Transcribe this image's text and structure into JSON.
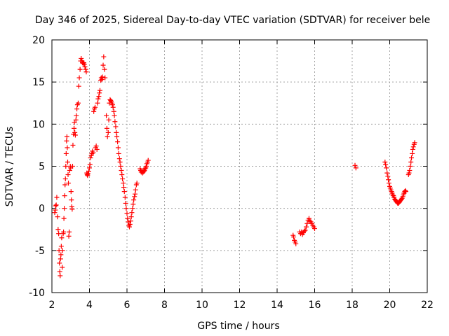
{
  "chart_data": {
    "type": "scatter",
    "title": "Day 346 of 2025, Sidereal Day-to-day VTEC variation (SDTVAR) for receiver bele",
    "xlabel": "GPS time / hours",
    "ylabel": "SDTVAR / TECUs",
    "xlim": [
      2,
      22
    ],
    "ylim": [
      -10,
      20
    ],
    "xticks": [
      2,
      4,
      6,
      8,
      10,
      12,
      14,
      16,
      18,
      20,
      22
    ],
    "yticks": [
      -10,
      -5,
      0,
      5,
      10,
      15,
      20
    ],
    "grid": true,
    "marker": "+",
    "color": "#ff0000",
    "series": [
      {
        "name": "SDTVAR",
        "points": [
          [
            2.15,
            -0.5
          ],
          [
            2.18,
            -0.2
          ],
          [
            2.2,
            0.3
          ],
          [
            2.23,
            0.4
          ],
          [
            2.26,
            1.3
          ],
          [
            2.3,
            -1.0
          ],
          [
            2.33,
            -2.5
          ],
          [
            2.36,
            -3.0
          ],
          [
            2.38,
            -5.0
          ],
          [
            2.4,
            -6.5
          ],
          [
            2.42,
            -7.5
          ],
          [
            2.44,
            -8.0
          ],
          [
            2.46,
            -6.0
          ],
          [
            2.48,
            -5.5
          ],
          [
            2.5,
            -4.5
          ],
          [
            2.52,
            -3.5
          ],
          [
            2.55,
            -7.0
          ],
          [
            2.57,
            -5.0
          ],
          [
            2.6,
            -3.0
          ],
          [
            2.62,
            -2.8
          ],
          [
            2.64,
            -1.2
          ],
          [
            2.66,
            0.0
          ],
          [
            2.68,
            1.5
          ],
          [
            2.7,
            2.8
          ],
          [
            2.72,
            3.5
          ],
          [
            2.74,
            5.0
          ],
          [
            2.76,
            6.5
          ],
          [
            2.78,
            8.0
          ],
          [
            2.8,
            8.5
          ],
          [
            2.82,
            7.2
          ],
          [
            2.84,
            5.5
          ],
          [
            2.86,
            4.0
          ],
          [
            2.88,
            3.0
          ],
          [
            2.9,
            -3.3
          ],
          [
            2.92,
            -2.8
          ],
          [
            2.95,
            4.5
          ],
          [
            2.98,
            5.0
          ],
          [
            3.0,
            4.8
          ],
          [
            3.02,
            2.0
          ],
          [
            3.04,
            1.0
          ],
          [
            3.06,
            0.2
          ],
          [
            3.08,
            -0.1
          ],
          [
            3.1,
            5.0
          ],
          [
            3.12,
            7.5
          ],
          [
            3.15,
            8.8
          ],
          [
            3.18,
            9.5
          ],
          [
            3.2,
            10.2
          ],
          [
            3.22,
            9.0
          ],
          [
            3.25,
            8.7
          ],
          [
            3.28,
            10.5
          ],
          [
            3.3,
            11.0
          ],
          [
            3.33,
            11.8
          ],
          [
            3.36,
            12.3
          ],
          [
            3.4,
            12.5
          ],
          [
            3.43,
            14.5
          ],
          [
            3.46,
            15.5
          ],
          [
            3.5,
            16.5
          ],
          [
            3.53,
            17.5
          ],
          [
            3.56,
            17.8
          ],
          [
            3.6,
            17.5
          ],
          [
            3.63,
            17.3
          ],
          [
            3.66,
            17.2
          ],
          [
            3.7,
            17.3
          ],
          [
            3.73,
            17.1
          ],
          [
            3.76,
            16.8
          ],
          [
            3.8,
            16.5
          ],
          [
            3.83,
            16.2
          ],
          [
            3.86,
            4.2
          ],
          [
            3.88,
            4.0
          ],
          [
            3.9,
            3.9
          ],
          [
            3.93,
            4.1
          ],
          [
            3.96,
            4.4
          ],
          [
            4.0,
            4.8
          ],
          [
            4.03,
            5.2
          ],
          [
            4.06,
            6.0
          ],
          [
            4.1,
            6.3
          ],
          [
            4.13,
            6.5
          ],
          [
            4.16,
            6.8
          ],
          [
            4.2,
            6.6
          ],
          [
            4.23,
            11.5
          ],
          [
            4.26,
            11.8
          ],
          [
            4.3,
            12.0
          ],
          [
            4.33,
            7.2
          ],
          [
            4.36,
            7.4
          ],
          [
            4.4,
            7.0
          ],
          [
            4.43,
            12.5
          ],
          [
            4.46,
            13.0
          ],
          [
            4.5,
            13.3
          ],
          [
            4.53,
            13.7
          ],
          [
            4.56,
            14.0
          ],
          [
            4.6,
            15.2
          ],
          [
            4.63,
            15.5
          ],
          [
            4.66,
            15.3
          ],
          [
            4.7,
            15.6
          ],
          [
            4.73,
            17.0
          ],
          [
            4.76,
            18.0
          ],
          [
            4.8,
            16.5
          ],
          [
            4.83,
            15.5
          ],
          [
            4.9,
            11.0
          ],
          [
            4.93,
            9.5
          ],
          [
            4.96,
            8.5
          ],
          [
            5.0,
            9.0
          ],
          [
            5.03,
            10.5
          ],
          [
            5.06,
            12.5
          ],
          [
            5.1,
            12.9
          ],
          [
            5.13,
            12.8
          ],
          [
            5.16,
            12.7
          ],
          [
            5.2,
            12.5
          ],
          [
            5.23,
            12.3
          ],
          [
            5.26,
            12.0
          ],
          [
            5.3,
            11.5
          ],
          [
            5.33,
            11.0
          ],
          [
            5.36,
            10.3
          ],
          [
            5.4,
            9.7
          ],
          [
            5.43,
            9.0
          ],
          [
            5.46,
            8.5
          ],
          [
            5.5,
            7.9
          ],
          [
            5.53,
            7.2
          ],
          [
            5.56,
            6.5
          ],
          [
            5.6,
            5.9
          ],
          [
            5.63,
            5.5
          ],
          [
            5.66,
            5.0
          ],
          [
            5.7,
            4.5
          ],
          [
            5.73,
            4.0
          ],
          [
            5.76,
            3.5
          ],
          [
            5.8,
            3.0
          ],
          [
            5.83,
            2.5
          ],
          [
            5.86,
            2.0
          ],
          [
            5.9,
            1.3
          ],
          [
            5.93,
            0.6
          ],
          [
            5.96,
            0.0
          ],
          [
            6.0,
            -0.6
          ],
          [
            6.03,
            -1.2
          ],
          [
            6.06,
            -1.6
          ],
          [
            6.1,
            -2.0
          ],
          [
            6.13,
            -2.2
          ],
          [
            6.16,
            -1.9
          ],
          [
            6.2,
            -1.5
          ],
          [
            6.23,
            -1.0
          ],
          [
            6.26,
            -0.5
          ],
          [
            6.3,
            0.0
          ],
          [
            6.33,
            0.5
          ],
          [
            6.36,
            1.0
          ],
          [
            6.4,
            1.4
          ],
          [
            6.43,
            1.7
          ],
          [
            6.46,
            2.2
          ],
          [
            6.5,
            2.8
          ],
          [
            6.53,
            3.0
          ],
          [
            6.7,
            4.7
          ],
          [
            6.73,
            4.5
          ],
          [
            6.76,
            4.3
          ],
          [
            6.8,
            4.4
          ],
          [
            6.83,
            4.2
          ],
          [
            6.86,
            4.3
          ],
          [
            6.9,
            4.4
          ],
          [
            6.93,
            4.5
          ],
          [
            6.96,
            4.7
          ],
          [
            7.0,
            4.8
          ],
          [
            7.03,
            5.0
          ],
          [
            7.06,
            5.3
          ],
          [
            7.1,
            5.5
          ],
          [
            7.13,
            5.7
          ],
          [
            14.85,
            -3.2
          ],
          [
            14.88,
            -3.4
          ],
          [
            14.92,
            -3.8
          ],
          [
            14.96,
            -4.0
          ],
          [
            15.0,
            -4.2
          ],
          [
            15.2,
            -2.8
          ],
          [
            15.25,
            -3.0
          ],
          [
            15.3,
            -2.8
          ],
          [
            15.35,
            -3.1
          ],
          [
            15.4,
            -2.9
          ],
          [
            15.45,
            -2.7
          ],
          [
            15.5,
            -2.6
          ],
          [
            15.55,
            -2.2
          ],
          [
            15.6,
            -1.8
          ],
          [
            15.65,
            -1.4
          ],
          [
            15.7,
            -1.2
          ],
          [
            15.75,
            -1.5
          ],
          [
            15.8,
            -1.6
          ],
          [
            15.85,
            -1.8
          ],
          [
            15.9,
            -2.0
          ],
          [
            15.95,
            -2.2
          ],
          [
            16.0,
            -2.4
          ],
          [
            18.15,
            5.1
          ],
          [
            18.2,
            4.8
          ],
          [
            19.75,
            5.5
          ],
          [
            19.78,
            5.2
          ],
          [
            19.82,
            4.8
          ],
          [
            19.86,
            4.2
          ],
          [
            19.9,
            3.8
          ],
          [
            19.93,
            3.4
          ],
          [
            19.96,
            3.0
          ],
          [
            20.0,
            2.6
          ],
          [
            20.03,
            2.4
          ],
          [
            20.06,
            2.2
          ],
          [
            20.1,
            2.0
          ],
          [
            20.13,
            1.8
          ],
          [
            20.16,
            1.6
          ],
          [
            20.2,
            1.5
          ],
          [
            20.23,
            1.3
          ],
          [
            20.26,
            1.1
          ],
          [
            20.3,
            1.0
          ],
          [
            20.33,
            0.9
          ],
          [
            20.36,
            0.8
          ],
          [
            20.4,
            0.7
          ],
          [
            20.43,
            0.6
          ],
          [
            20.46,
            0.6
          ],
          [
            20.5,
            0.7
          ],
          [
            20.53,
            0.8
          ],
          [
            20.56,
            0.9
          ],
          [
            20.6,
            1.0
          ],
          [
            20.63,
            1.1
          ],
          [
            20.66,
            1.2
          ],
          [
            20.7,
            1.4
          ],
          [
            20.73,
            1.6
          ],
          [
            20.76,
            1.8
          ],
          [
            20.8,
            2.0
          ],
          [
            20.83,
            2.1
          ],
          [
            20.86,
            2.0
          ],
          [
            21.0,
            4.0
          ],
          [
            21.03,
            4.2
          ],
          [
            21.06,
            4.5
          ],
          [
            21.1,
            5.0
          ],
          [
            21.13,
            5.5
          ],
          [
            21.16,
            6.0
          ],
          [
            21.2,
            6.5
          ],
          [
            21.23,
            7.0
          ],
          [
            21.26,
            7.3
          ],
          [
            21.3,
            7.6
          ],
          [
            21.33,
            7.8
          ]
        ]
      }
    ]
  }
}
